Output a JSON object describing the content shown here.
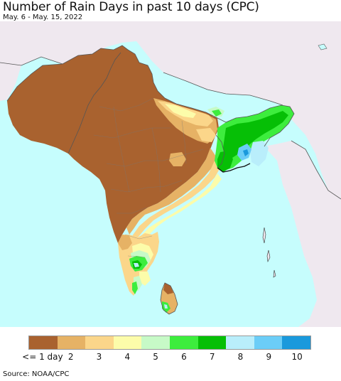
{
  "header": {
    "title": "Number of Rain Days in past 10 days (CPC)",
    "subtitle": "May. 6 - May. 15, 2022"
  },
  "legend": {
    "bins": [
      {
        "label": "<= 1 day",
        "color": "#a9622f"
      },
      {
        "label": "2",
        "color": "#e6b265"
      },
      {
        "label": "3",
        "color": "#fbd68a"
      },
      {
        "label": "4",
        "color": "#fcfcaa"
      },
      {
        "label": "5",
        "color": "#c7fac7"
      },
      {
        "label": "6",
        "color": "#3ded3d"
      },
      {
        "label": "7",
        "color": "#06bf06"
      },
      {
        "label": "8",
        "color": "#b9eefb"
      },
      {
        "label": "9",
        "color": "#6bcdf7"
      },
      {
        "label": "10",
        "color": "#1a99dc"
      }
    ]
  },
  "map": {
    "ocean_color": "#c6fdfd",
    "nodata_land_color": "#efe8ef",
    "border_color": "#555555"
  },
  "footer": {
    "source": "Source: NOAA/CPC"
  }
}
